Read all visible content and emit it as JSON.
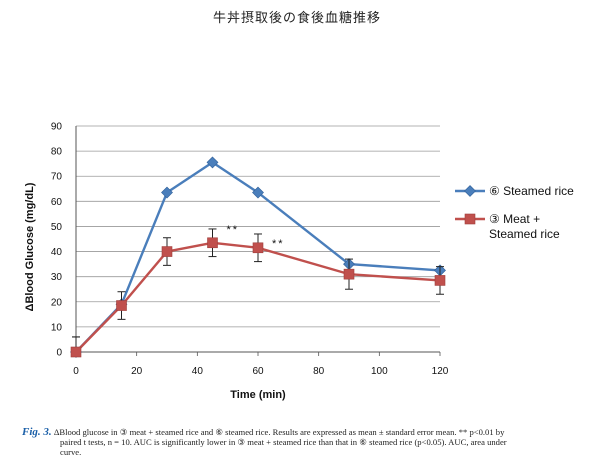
{
  "page_title": "牛丼摂取後の食後血糖推移",
  "caption": {
    "label": "Fig. 3.",
    "line1": "ΔBlood glucose in ③ meat + steamed rice and ⑥ steamed rice. Results are expressed as mean ± standard error mean. ** p<0.01 by",
    "line2": "paired t tests, n = 10. AUC is significantly lower in ③ meat + steamed rice than that in ⑥ steamed rice (p<0.05). AUC, area under",
    "line3": "curve."
  },
  "chart_data": {
    "type": "line",
    "xlabel": "Time (min)",
    "ylabel": "ΔBlood Glucose (mg/dL)",
    "xlim": [
      0,
      120
    ],
    "ylim": [
      0,
      90
    ],
    "x_ticks": [
      0,
      20,
      40,
      60,
      80,
      100,
      120
    ],
    "y_ticks": [
      0,
      10,
      20,
      30,
      40,
      50,
      60,
      70,
      80,
      90
    ],
    "grid": true,
    "legend_position": "right",
    "series": [
      {
        "name": "⑥ Steamed rice",
        "legend_lines": [
          "⑥ Steamed rice"
        ],
        "color": "#4a7ebb",
        "marker": "diamond",
        "x": [
          0,
          15,
          30,
          45,
          60,
          90,
          120
        ],
        "y": [
          0,
          19,
          63.5,
          75.5,
          63.5,
          35,
          32.5
        ],
        "err": [
          0,
          0,
          0,
          0,
          0,
          0,
          0
        ]
      },
      {
        "name": "③ Meat + Steamed rice",
        "legend_lines": [
          "③ Meat +",
          "Steamed rice"
        ],
        "color": "#c0504d",
        "marker": "square",
        "x": [
          0,
          15,
          30,
          45,
          60,
          90,
          120
        ],
        "y": [
          0,
          18.5,
          40,
          43.5,
          41.5,
          31,
          28.5
        ],
        "err": [
          6,
          5.5,
          5.5,
          5.5,
          5.5,
          6,
          5.5
        ]
      }
    ],
    "annotations": [
      {
        "text": "**",
        "x": 45,
        "y": 49
      },
      {
        "text": "**",
        "x": 60,
        "y": 43.5
      }
    ]
  }
}
